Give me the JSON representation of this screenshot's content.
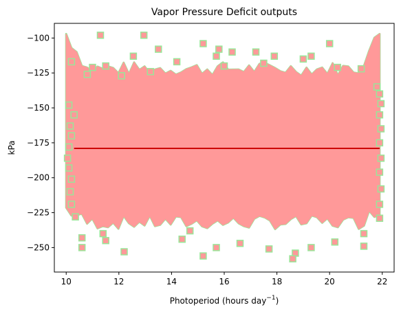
{
  "chart_data": {
    "type": "scatter",
    "title": "Vapor Pressure Deficit outputs",
    "xlabel": "Photoperiod (hours day",
    "xlabel_superscript": "−1",
    "xlabel_suffix": ")",
    "ylabel": "kPa",
    "xlim": [
      9.55,
      22.45
    ],
    "ylim": [
      -267.5,
      -89.5
    ],
    "x_ticks": [
      10,
      12,
      14,
      16,
      18,
      20,
      22
    ],
    "x_tick_labels": [
      "10",
      "12",
      "14",
      "16",
      "18",
      "20",
      "22"
    ],
    "y_ticks": [
      -100,
      -125,
      -150,
      -175,
      -200,
      -225,
      -250
    ],
    "y_tick_labels": [
      "−100",
      "−125",
      "−150",
      "−175",
      "−200",
      "−225",
      "−250"
    ],
    "grid": false,
    "colors": {
      "marker_fill": "#ff9999",
      "marker_edge": "#99e699",
      "trend_line": "#cc0000",
      "axes": "#000000"
    },
    "series": [
      {
        "kind": "scatter",
        "marker": "square",
        "values": [
          [
            11.3,
            -98
          ],
          [
            12.95,
            -98
          ],
          [
            20.0,
            -104
          ],
          [
            15.2,
            -104
          ],
          [
            13.5,
            -108
          ],
          [
            15.8,
            -108
          ],
          [
            16.3,
            -110
          ],
          [
            17.2,
            -110
          ],
          [
            19.3,
            -113
          ],
          [
            12.55,
            -113
          ],
          [
            15.7,
            -113
          ],
          [
            17.9,
            -113
          ],
          [
            10.2,
            -117
          ],
          [
            14.2,
            -117
          ],
          [
            19.0,
            -115
          ],
          [
            11.0,
            -121
          ],
          [
            11.5,
            -120
          ],
          [
            20.3,
            -121
          ],
          [
            21.2,
            -122
          ],
          [
            16.0,
            -120
          ],
          [
            17.5,
            -118
          ],
          [
            10.8,
            -126
          ],
          [
            12.1,
            -127
          ],
          [
            13.2,
            -124
          ],
          [
            21.8,
            -135
          ],
          [
            21.9,
            -140
          ],
          [
            10.1,
            -148
          ],
          [
            10.3,
            -155
          ],
          [
            10.15,
            -163
          ],
          [
            10.2,
            -170
          ],
          [
            10.1,
            -178
          ],
          [
            10.05,
            -186
          ],
          [
            10.1,
            -193
          ],
          [
            10.2,
            -201
          ],
          [
            10.15,
            -210
          ],
          [
            10.2,
            -219
          ],
          [
            10.35,
            -228
          ],
          [
            10.6,
            -243
          ],
          [
            10.6,
            -250
          ],
          [
            11.4,
            -240
          ],
          [
            11.5,
            -245
          ],
          [
            12.2,
            -253
          ],
          [
            14.4,
            -244
          ],
          [
            14.7,
            -238
          ],
          [
            15.2,
            -256
          ],
          [
            15.7,
            -250
          ],
          [
            16.6,
            -247
          ],
          [
            17.7,
            -251
          ],
          [
            18.7,
            -254
          ],
          [
            18.6,
            -258
          ],
          [
            19.3,
            -250
          ],
          [
            20.2,
            -246
          ],
          [
            21.3,
            -240
          ],
          [
            21.3,
            -249
          ],
          [
            21.9,
            -229
          ],
          [
            21.9,
            -219
          ],
          [
            21.95,
            -208
          ],
          [
            21.9,
            -196
          ],
          [
            21.95,
            -186
          ],
          [
            21.9,
            -175
          ],
          [
            21.95,
            -165
          ],
          [
            21.9,
            -155
          ],
          [
            21.95,
            -147
          ]
        ]
      },
      {
        "kind": "line",
        "name": "",
        "values": [
          [
            10.3,
            -179
          ],
          [
            21.9,
            -179
          ]
        ]
      }
    ],
    "dense_region_extent": {
      "x_range": [
        10.0,
        21.9
      ],
      "y_upper": -122,
      "y_lower": -232
    }
  }
}
